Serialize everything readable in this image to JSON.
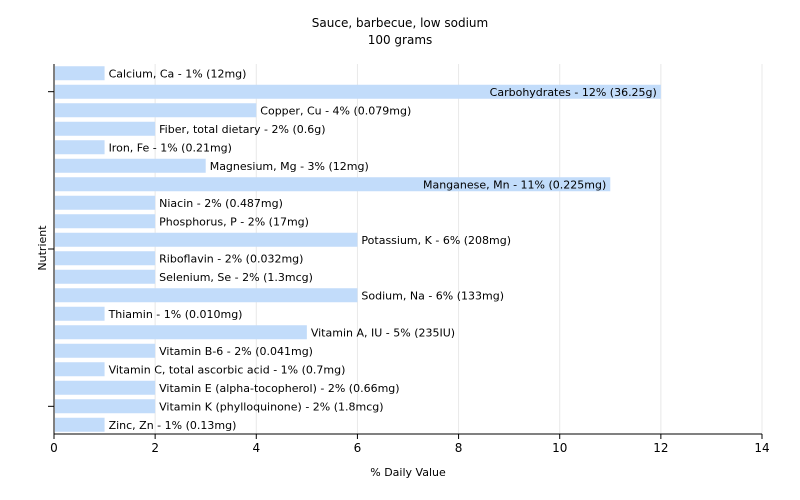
{
  "chart_data": {
    "type": "bar",
    "orientation": "horizontal",
    "title": "Sauce, barbecue, low sodium",
    "subtitle": "100 grams",
    "xlabel": "% Daily Value",
    "ylabel": "Nutrient",
    "xlim": [
      0,
      14
    ],
    "xticks": [
      0,
      2,
      4,
      6,
      8,
      10,
      12,
      14
    ],
    "grid": true,
    "bar_color": "#c2dcfa",
    "categories": [
      "Calcium, Ca - 1% (12mg)",
      "Carbohydrates - 12% (36.25g)",
      "Copper, Cu - 4% (0.079mg)",
      "Fiber, total dietary - 2% (0.6g)",
      "Iron, Fe - 1% (0.21mg)",
      "Magnesium, Mg - 3% (12mg)",
      "Manganese, Mn - 11% (0.225mg)",
      "Niacin - 2% (0.487mg)",
      "Phosphorus, P - 2% (17mg)",
      "Potassium, K - 6% (208mg)",
      "Riboflavin - 2% (0.032mg)",
      "Selenium, Se - 2% (1.3mcg)",
      "Sodium, Na - 6% (133mg)",
      "Thiamin - 1% (0.010mg)",
      "Vitamin A, IU - 5% (235IU)",
      "Vitamin B-6 - 2% (0.041mg)",
      "Vitamin C, total ascorbic acid - 1% (0.7mg)",
      "Vitamin E (alpha-tocopherol) - 2% (0.66mg)",
      "Vitamin K (phylloquinone) - 2% (1.8mcg)",
      "Zinc, Zn - 1% (0.13mg)"
    ],
    "values": [
      1,
      12,
      4,
      2,
      1,
      3,
      11,
      2,
      2,
      6,
      2,
      2,
      6,
      1,
      5,
      2,
      1,
      2,
      2,
      1
    ]
  }
}
